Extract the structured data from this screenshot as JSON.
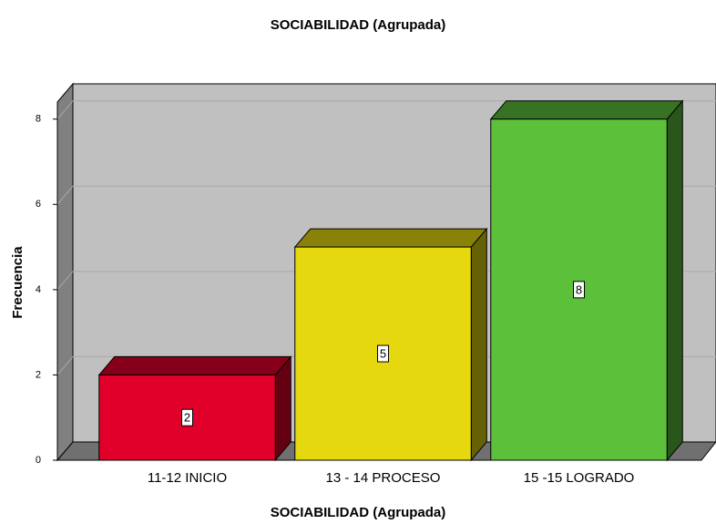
{
  "chart_data": {
    "type": "bar",
    "title": "SOCIABILIDAD  (Agrupada)",
    "x_label": "SOCIABILIDAD  (Agrupada)",
    "y_label": "Frecuencia",
    "categories": [
      "11-12 INICIO",
      "13 - 14 PROCESO",
      "15 -15 LOGRADO"
    ],
    "values": [
      2,
      5,
      8
    ],
    "colors": [
      "#e0002a",
      "#e5d80e",
      "#5cc03a"
    ],
    "ylim": [
      0,
      8.4
    ],
    "yticks": [
      0,
      2,
      4,
      6,
      8
    ],
    "grid": true
  }
}
